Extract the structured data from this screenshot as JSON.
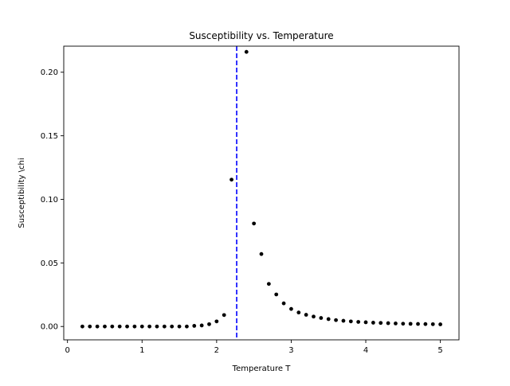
{
  "chart_data": {
    "type": "scatter",
    "title": "Susceptibility vs. Temperature",
    "xlabel": "Temperature T",
    "ylabel": "Susceptibility \\chi",
    "xlim": [
      -0.05,
      5.25
    ],
    "ylim": [
      -0.0105,
      0.2205
    ],
    "xticks": [
      0,
      1,
      2,
      3,
      4,
      5
    ],
    "xtick_labels": [
      "0",
      "1",
      "2",
      "3",
      "4",
      "5"
    ],
    "yticks": [
      0,
      0.05,
      0.1,
      0.15,
      0.2
    ],
    "ytick_labels": [
      "0.00",
      "0.05",
      "0.10",
      "0.15",
      "0.20"
    ],
    "grid": false,
    "marker_color": "#000000",
    "reference_line": {
      "x": 2.269,
      "color": "#0000ff",
      "style": "dashed"
    },
    "x": [
      0.2,
      0.3,
      0.4,
      0.5,
      0.6,
      0.7,
      0.8,
      0.9,
      1.0,
      1.1,
      1.2,
      1.3,
      1.4,
      1.5,
      1.6,
      1.7,
      1.8,
      1.9,
      2.0,
      2.1,
      2.2,
      2.4,
      2.5,
      2.6,
      2.7,
      2.8,
      2.9,
      3.0,
      3.1,
      3.2,
      3.3,
      3.4,
      3.5,
      3.6,
      3.7,
      3.8,
      3.9,
      4.0,
      4.1,
      4.2,
      4.3,
      4.4,
      4.5,
      4.6,
      4.7,
      4.8,
      4.9,
      5.0
    ],
    "y": [
      0.0,
      0.0,
      0.0,
      0.0,
      0.0,
      0.0,
      0.0,
      0.0,
      0.0,
      0.0,
      0.0,
      0.0,
      0.0,
      0.0,
      0.0,
      0.0005,
      0.0008,
      0.0018,
      0.004,
      0.009,
      0.1155,
      0.216,
      0.081,
      0.057,
      0.0335,
      0.0252,
      0.0182,
      0.0138,
      0.011,
      0.0092,
      0.0078,
      0.0067,
      0.0058,
      0.005,
      0.0045,
      0.004,
      0.0036,
      0.0033,
      0.003,
      0.0028,
      0.0026,
      0.0024,
      0.0022,
      0.0021,
      0.002,
      0.0019,
      0.0018,
      0.0017
    ]
  }
}
